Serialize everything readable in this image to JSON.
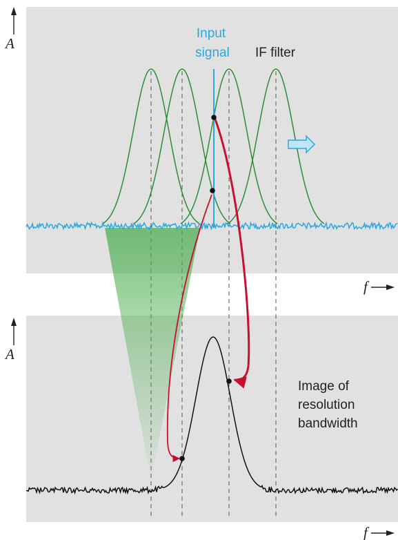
{
  "top_panel": {
    "y_axis_label": "A",
    "x_axis_label": "f",
    "input_signal_label": [
      "Input",
      "signal"
    ],
    "if_filter_label": "IF filter"
  },
  "bottom_panel": {
    "y_axis_label": "A",
    "x_axis_label": "f",
    "result_label": [
      "Image of",
      "resolution",
      "bandwidth"
    ]
  },
  "colors": {
    "panel_background": "#e1e1e1",
    "filter_curve": "#2e8b3a",
    "input_signal": "#2aa7df",
    "noise_top": "#2aa7df",
    "trace_bottom": "#111111",
    "sweep_arrow": "#c8102e",
    "shift_arrow": "#8fd0f0",
    "projection_fill": "#4caf50",
    "guide_line": "#555555"
  },
  "icons": {
    "shift_arrow": "right-arrow-icon"
  }
}
